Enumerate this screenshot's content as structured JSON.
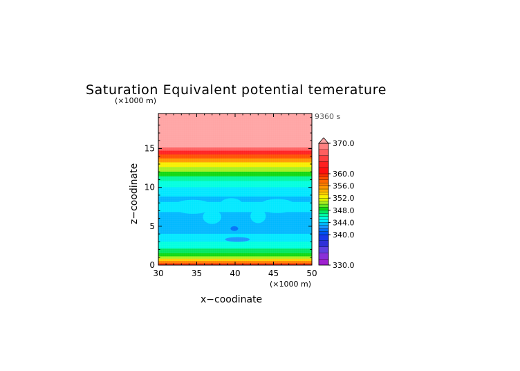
{
  "chart_data": {
    "type": "heatmap",
    "title": "Saturation Equivalent potential temerature",
    "xlabel": "x−coodinate",
    "ylabel": "z−coodinate",
    "x_unit": "(×1000 m)",
    "y_unit": "(×1000 m)",
    "time_label": "9360 s",
    "xlim": [
      30,
      50
    ],
    "ylim": [
      0,
      19.5
    ],
    "x_ticks": [
      30,
      35,
      40,
      45,
      50
    ],
    "y_ticks": [
      0,
      5,
      10,
      15
    ],
    "x_tick_labels": [
      "30",
      "35",
      "40",
      "45",
      "50"
    ],
    "y_tick_labels": [
      "0",
      "5",
      "10",
      "15"
    ],
    "colorbar": {
      "min": 330,
      "max": 370,
      "extend": "max",
      "labels": [
        {
          "value": 330,
          "text": "330.0"
        },
        {
          "value": 340,
          "text": "340.0"
        },
        {
          "value": 344,
          "text": "344.0"
        },
        {
          "value": 348,
          "text": "348.0"
        },
        {
          "value": 352,
          "text": "352.0"
        },
        {
          "value": 356,
          "text": "356.0"
        },
        {
          "value": 360,
          "text": "360.0"
        },
        {
          "value": 370,
          "text": "370.0"
        }
      ],
      "levels": [
        {
          "from": 330,
          "to": 332,
          "color": "#9f20d0"
        },
        {
          "from": 332,
          "to": 334,
          "color": "#8a30d8"
        },
        {
          "from": 334,
          "to": 336,
          "color": "#6040e0"
        },
        {
          "from": 336,
          "to": 338,
          "color": "#3030d8"
        },
        {
          "from": 338,
          "to": 340,
          "color": "#1838e8"
        },
        {
          "from": 340,
          "to": 341,
          "color": "#0050f0"
        },
        {
          "from": 341,
          "to": 342,
          "color": "#0070f8"
        },
        {
          "from": 342,
          "to": 343,
          "color": "#1894ff"
        },
        {
          "from": 343,
          "to": 344,
          "color": "#00b8ff"
        },
        {
          "from": 344,
          "to": 345,
          "color": "#00e8ff"
        },
        {
          "from": 345,
          "to": 346,
          "color": "#00ffe0"
        },
        {
          "from": 346,
          "to": 347,
          "color": "#00f8a0"
        },
        {
          "from": 347,
          "to": 348,
          "color": "#00e860"
        },
        {
          "from": 348,
          "to": 349,
          "color": "#10d810"
        },
        {
          "from": 349,
          "to": 350,
          "color": "#60e820"
        },
        {
          "from": 350,
          "to": 351,
          "color": "#a8f020"
        },
        {
          "from": 351,
          "to": 352,
          "color": "#e0f800"
        },
        {
          "from": 352,
          "to": 353,
          "color": "#f8f000"
        },
        {
          "from": 353,
          "to": 354,
          "color": "#ffd000"
        },
        {
          "from": 354,
          "to": 355,
          "color": "#ffb000"
        },
        {
          "from": 355,
          "to": 356,
          "color": "#ff9800"
        },
        {
          "from": 356,
          "to": 357,
          "color": "#ff8000"
        },
        {
          "from": 357,
          "to": 358,
          "color": "#ff6800"
        },
        {
          "from": 358,
          "to": 359,
          "color": "#ff5000"
        },
        {
          "from": 359,
          "to": 360,
          "color": "#ff3000"
        },
        {
          "from": 360,
          "to": 362,
          "color": "#ff1010"
        },
        {
          "from": 362,
          "to": 364,
          "color": "#ff2020"
        },
        {
          "from": 364,
          "to": 366,
          "color": "#ff4040"
        },
        {
          "from": 366,
          "to": 368,
          "color": "#ff6060"
        },
        {
          "from": 368,
          "to": 370,
          "color": "#ff8080"
        },
        {
          "from": 370,
          "to": 380,
          "color": "#ffa4a4"
        }
      ]
    },
    "bands": [
      {
        "z_from": 0.0,
        "z_to": 0.4,
        "value": 359
      },
      {
        "z_from": 0.4,
        "z_to": 0.7,
        "value": 356
      },
      {
        "z_from": 0.7,
        "z_to": 1.0,
        "value": 353
      },
      {
        "z_from": 1.0,
        "z_to": 1.3,
        "value": 350
      },
      {
        "z_from": 1.3,
        "z_to": 1.7,
        "value": 348
      },
      {
        "z_from": 1.7,
        "z_to": 2.3,
        "value": 347
      },
      {
        "z_from": 2.3,
        "z_to": 3.2,
        "value": 345
      },
      {
        "z_from": 3.2,
        "z_to": 4.2,
        "value": 344
      },
      {
        "z_from": 4.2,
        "z_to": 7.0,
        "value": 343
      },
      {
        "z_from": 7.0,
        "z_to": 8.3,
        "value": 344
      },
      {
        "z_from": 8.3,
        "z_to": 9.0,
        "value": 343
      },
      {
        "z_from": 9.0,
        "z_to": 10.2,
        "value": 344
      },
      {
        "z_from": 10.2,
        "z_to": 11.0,
        "value": 345
      },
      {
        "z_from": 11.0,
        "z_to": 11.6,
        "value": 346
      },
      {
        "z_from": 11.6,
        "z_to": 12.2,
        "value": 348
      },
      {
        "z_from": 12.2,
        "z_to": 12.8,
        "value": 350
      },
      {
        "z_from": 12.8,
        "z_to": 13.4,
        "value": 352
      },
      {
        "z_from": 13.4,
        "z_to": 13.9,
        "value": 355
      },
      {
        "z_from": 13.9,
        "z_to": 14.4,
        "value": 358
      },
      {
        "z_from": 14.4,
        "z_to": 14.9,
        "value": 362
      },
      {
        "z_from": 14.9,
        "z_to": 15.3,
        "value": 366
      },
      {
        "z_from": 15.3,
        "z_to": 19.5,
        "value": 371
      }
    ],
    "features": [
      {
        "kind": "lobe",
        "x": 39.5,
        "z": 7.9,
        "rx": 1.4,
        "rz": 0.7,
        "value": 344
      },
      {
        "kind": "lobe",
        "x": 34.5,
        "z": 7.5,
        "rx": 2.6,
        "rz": 0.9,
        "value": 344
      },
      {
        "kind": "lobe",
        "x": 45.5,
        "z": 7.6,
        "rx": 2.4,
        "rz": 0.9,
        "value": 344
      },
      {
        "kind": "lobe",
        "x": 37.0,
        "z": 6.2,
        "rx": 1.2,
        "rz": 0.9,
        "value": 344
      },
      {
        "kind": "lobe",
        "x": 43.0,
        "z": 6.3,
        "rx": 1.0,
        "rz": 0.9,
        "value": 344
      },
      {
        "kind": "spot",
        "x": 39.9,
        "z": 4.7,
        "rx": 0.5,
        "rz": 0.3,
        "value": 341
      },
      {
        "kind": "spot",
        "x": 40.3,
        "z": 3.3,
        "rx": 1.6,
        "rz": 0.3,
        "value": 342
      }
    ]
  }
}
